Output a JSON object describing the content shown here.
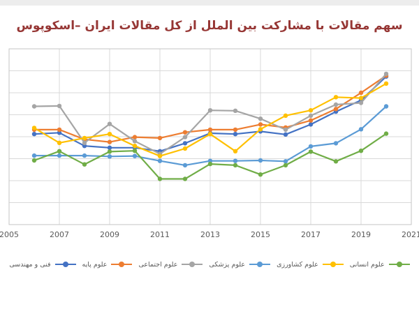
{
  "window": {
    "background": "#ffffff",
    "top_edge_color": "#ededed"
  },
  "chart_data": {
    "type": "line",
    "title": "سهم مقالات با مشارکت بین الملل از کل مقالات ایران –اسکوپوس",
    "title_color": "#963634",
    "xlabel": "",
    "ylabel": "",
    "x": [
      2006,
      2007,
      2008,
      2009,
      2010,
      2011,
      2012,
      2013,
      2014,
      2015,
      2016,
      2017,
      2018,
      2019,
      2020
    ],
    "x_tick_labels": [
      "2005",
      "2007",
      "2009",
      "2011",
      "2013",
      "2015",
      "2017",
      "2019",
      "2021"
    ],
    "x_axis_range": [
      2005,
      2021
    ],
    "y_axis": {
      "labels_visible": false,
      "gridline_rows": 8,
      "range_estimated": [
        10,
        50
      ]
    },
    "grid": true,
    "legend_position": "bottom",
    "gridline_color": "#d9d9d9",
    "plot_border_color": "#c6c6c6",
    "axis_text_color": "#595959",
    "series": [
      {
        "name": "فنی و مهندسی",
        "color": "#4472C4",
        "values": [
          30.6,
          30.9,
          27.9,
          27.5,
          27.5,
          26.7,
          28.5,
          30.8,
          30.6,
          31.2,
          30.5,
          32.8,
          35.7,
          38.3,
          43.7
        ]
      },
      {
        "name": "علوم پایه",
        "color": "#ED7D31",
        "values": [
          31.6,
          31.6,
          29.4,
          28.8,
          29.9,
          29.7,
          31.0,
          31.6,
          31.6,
          32.8,
          32.1,
          33.7,
          36.3,
          40.0,
          43.9
        ]
      },
      {
        "name": "علوم اجتماعی",
        "color": "#A5A5A5",
        "values": [
          36.9,
          37.0,
          28.6,
          32.9,
          29.0,
          26.1,
          29.9,
          36.0,
          35.9,
          34.1,
          31.6,
          34.8,
          37.3,
          37.7,
          44.3
        ]
      },
      {
        "name": "علوم پزشکی",
        "color": "#5B9BD5",
        "values": [
          25.7,
          25.7,
          25.7,
          25.5,
          25.6,
          24.5,
          23.5,
          24.5,
          24.5,
          24.6,
          24.4,
          27.8,
          28.5,
          31.7,
          36.9
        ]
      },
      {
        "name": "علوم کشاورزی",
        "color": "#FFC000",
        "values": [
          32.0,
          28.6,
          29.7,
          30.6,
          27.9,
          25.6,
          27.3,
          30.6,
          26.7,
          31.7,
          34.8,
          36.0,
          39.0,
          38.8,
          42.1
        ]
      },
      {
        "name": "علوم انسانی",
        "color": "#70AD47",
        "values": [
          24.6,
          26.7,
          23.7,
          26.6,
          26.8,
          20.4,
          20.4,
          23.8,
          23.5,
          21.4,
          23.5,
          26.6,
          24.4,
          26.8,
          30.7
        ]
      }
    ]
  }
}
